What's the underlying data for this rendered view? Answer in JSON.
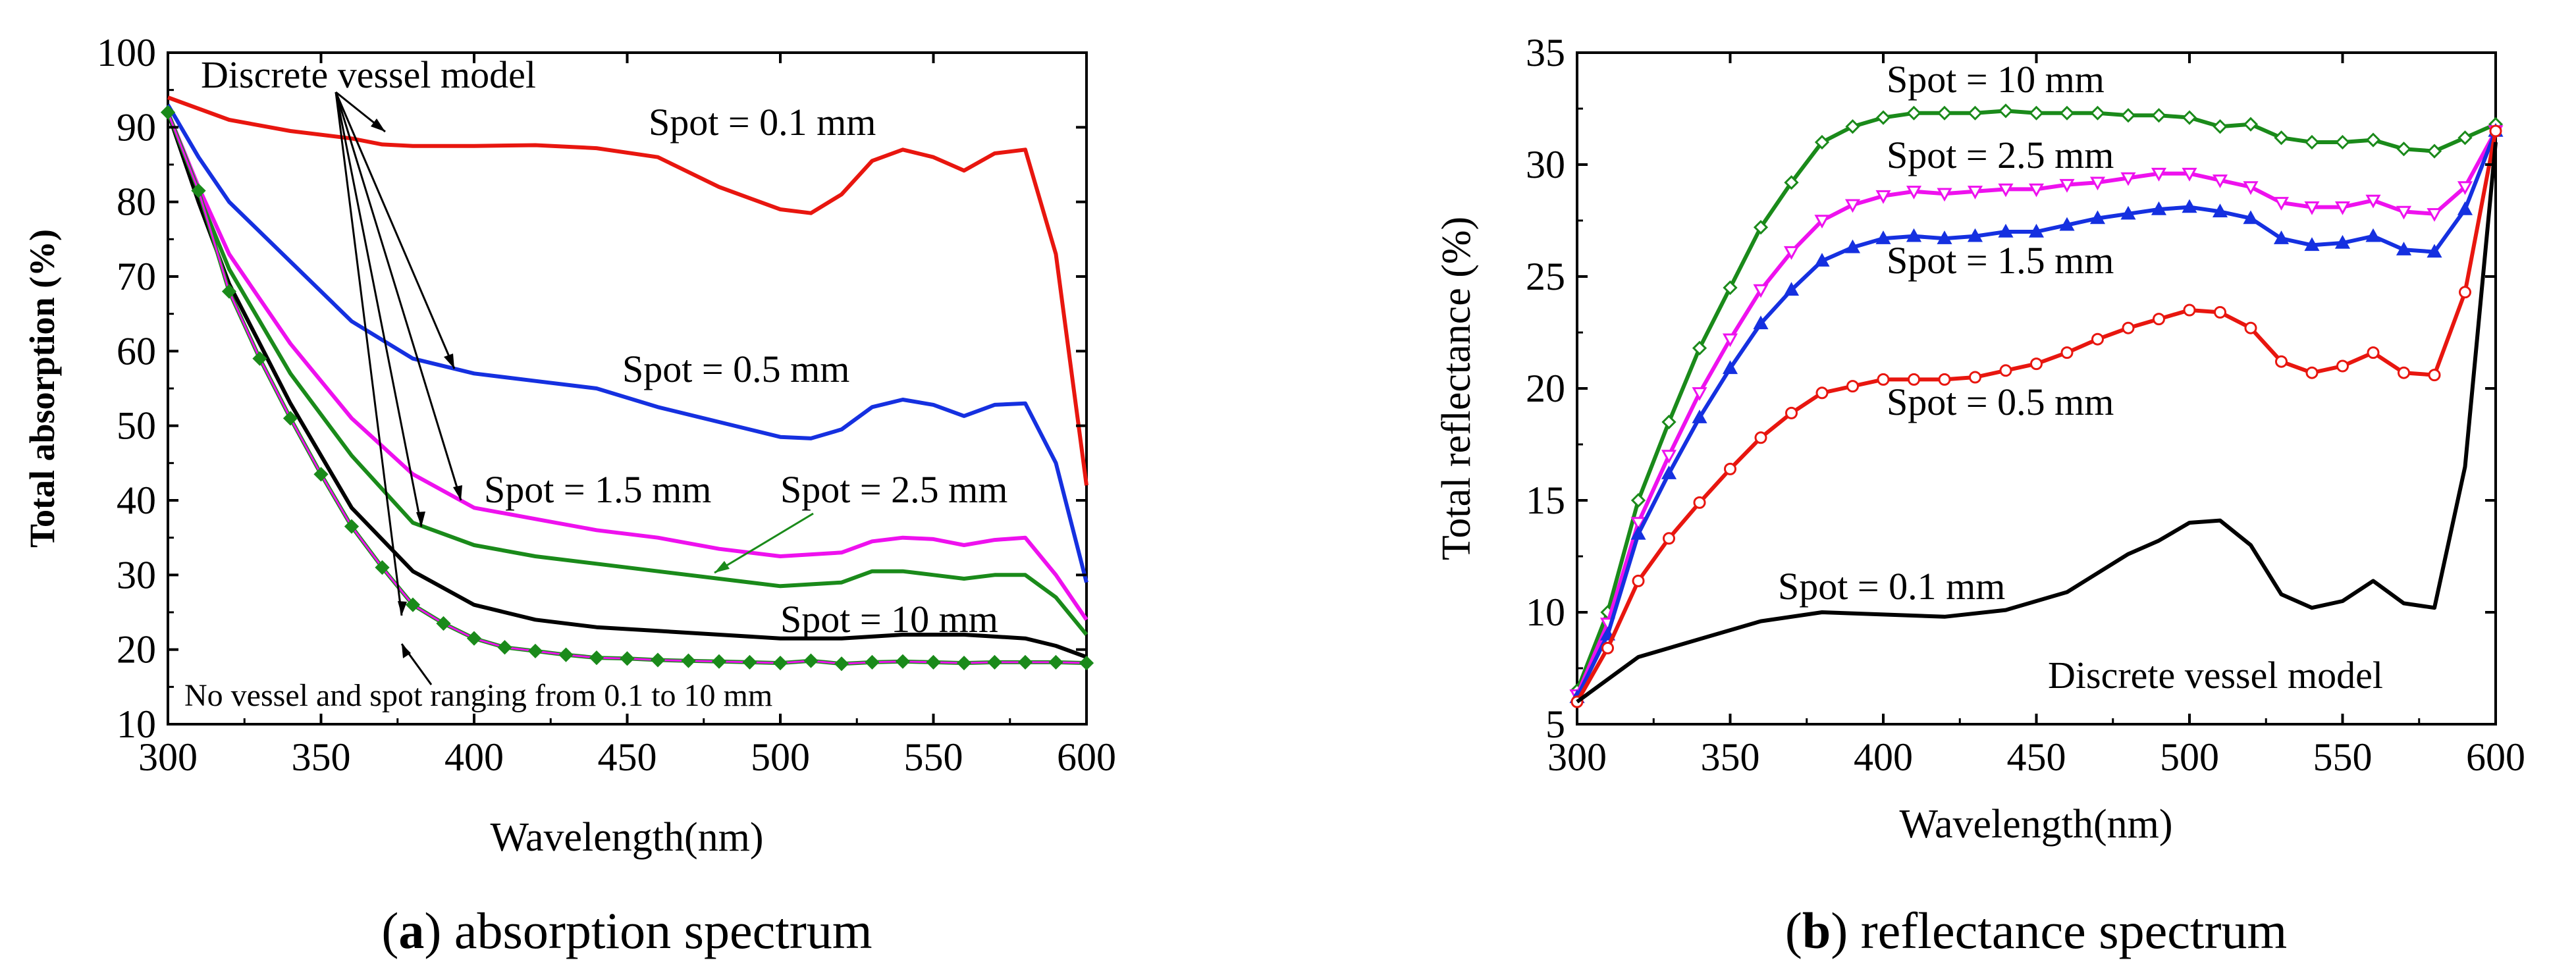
{
  "chart_data": [
    {
      "type": "line",
      "panel": "a",
      "caption_letter": "a",
      "caption_text": "absorption spectrum",
      "xlabel": "Wavelength(nm)",
      "ylabel": "Total absorption (%)",
      "xlim": [
        300,
        600
      ],
      "ylim": [
        10,
        100
      ],
      "xticks": [
        300,
        350,
        400,
        450,
        500,
        550,
        600
      ],
      "yticks": [
        10,
        20,
        30,
        40,
        50,
        60,
        70,
        80,
        90,
        100
      ],
      "series": [
        {
          "name": "Spot = 0.1 mm",
          "color": "#e8160f",
          "marker": "none",
          "x": [
            300,
            310,
            320,
            340,
            360,
            370,
            380,
            400,
            420,
            440,
            460,
            480,
            500,
            510,
            520,
            530,
            540,
            550,
            560,
            570,
            580,
            590,
            600
          ],
          "y": [
            94,
            92.5,
            91,
            89.5,
            88.5,
            87.7,
            87.5,
            87.5,
            87.6,
            87.2,
            86,
            82,
            79,
            78.5,
            81,
            85.5,
            87,
            86,
            84.2,
            86.5,
            87,
            73,
            42
          ]
        },
        {
          "name": "Spot = 0.5 mm",
          "color": "#1530e0",
          "marker": "none",
          "x": [
            300,
            310,
            320,
            340,
            360,
            380,
            400,
            420,
            440,
            460,
            480,
            500,
            510,
            520,
            530,
            540,
            550,
            560,
            570,
            580,
            590,
            600
          ],
          "y": [
            93,
            86,
            80,
            72,
            64,
            59,
            57,
            56,
            55,
            52.5,
            50.5,
            48.5,
            48.3,
            49.5,
            52.5,
            53.5,
            52.8,
            51.3,
            52.8,
            53,
            45,
            29
          ]
        },
        {
          "name": "Spot = 1.5 mm",
          "color": "#ee11ee",
          "marker": "none",
          "x": [
            300,
            310,
            320,
            340,
            360,
            380,
            400,
            420,
            440,
            460,
            480,
            500,
            520,
            530,
            540,
            550,
            560,
            570,
            580,
            590,
            600
          ],
          "y": [
            92,
            82,
            73,
            61,
            51,
            43.5,
            39,
            37.5,
            36,
            35,
            33.5,
            32.5,
            33,
            34.5,
            35,
            34.8,
            34,
            34.7,
            35,
            30,
            24
          ]
        },
        {
          "name": "Spot = 2.5 mm",
          "color": "#1a8a1a",
          "marker": "none",
          "x": [
            300,
            310,
            320,
            340,
            360,
            380,
            400,
            420,
            440,
            460,
            480,
            500,
            520,
            530,
            540,
            550,
            560,
            570,
            580,
            590,
            600
          ],
          "y": [
            92,
            81,
            71,
            57,
            46,
            37,
            34,
            32.5,
            31.5,
            30.5,
            29.5,
            28.5,
            29,
            30.5,
            30.5,
            30,
            29.5,
            30,
            30,
            27,
            22
          ]
        },
        {
          "name": "Spot = 10 mm",
          "color": "#000000",
          "marker": "none",
          "x": [
            300,
            310,
            320,
            340,
            360,
            380,
            400,
            420,
            440,
            460,
            480,
            500,
            520,
            540,
            560,
            580,
            590,
            600
          ],
          "y": [
            92,
            80,
            69,
            53,
            39,
            30.5,
            26,
            24,
            23,
            22.5,
            22,
            21.5,
            21.5,
            22,
            22,
            21.5,
            20.5,
            19
          ]
        },
        {
          "name": "No vessel and spot ranging from 0.1 to 10 mm",
          "color": "#1a8a1a",
          "marker": "diamond",
          "overlay_color": "#ee11ee",
          "x": [
            300,
            310,
            320,
            330,
            340,
            350,
            360,
            370,
            380,
            390,
            400,
            410,
            420,
            430,
            440,
            450,
            460,
            470,
            480,
            490,
            500,
            510,
            520,
            530,
            540,
            550,
            560,
            570,
            580,
            590,
            600
          ],
          "y": [
            92,
            81.5,
            68,
            59,
            51,
            43.5,
            36.5,
            31,
            26,
            23.5,
            21.5,
            20.3,
            19.8,
            19.3,
            18.9,
            18.8,
            18.6,
            18.5,
            18.4,
            18.3,
            18.2,
            18.5,
            18.1,
            18.3,
            18.4,
            18.3,
            18.2,
            18.3,
            18.3,
            18.3,
            18.2
          ]
        }
      ],
      "annotations": {
        "discrete_model": "Discrete vessel model",
        "no_vessel": "No vessel and spot ranging from 0.1 to 10 mm",
        "spot_01": "Spot = 0.1 mm",
        "spot_05": "Spot = 0.5 mm",
        "spot_15": "Spot = 1.5 mm",
        "spot_25": "Spot = 2.5 mm",
        "spot_10": "Spot = 10 mm"
      }
    },
    {
      "type": "line",
      "panel": "b",
      "caption_letter": "b",
      "caption_text": "reflectance spectrum",
      "xlabel": "Wavelength(nm)",
      "ylabel": "Total reflectance (%)",
      "xlim": [
        300,
        600
      ],
      "ylim": [
        5,
        35
      ],
      "xticks": [
        300,
        350,
        400,
        450,
        500,
        550,
        600
      ],
      "yticks": [
        5,
        10,
        15,
        20,
        25,
        30,
        35
      ],
      "series": [
        {
          "name": "Spot = 10 mm",
          "color": "#1a8a1a",
          "marker": "diamond-open",
          "x": [
            300,
            310,
            320,
            330,
            340,
            350,
            360,
            370,
            380,
            390,
            400,
            410,
            420,
            430,
            440,
            450,
            460,
            470,
            480,
            490,
            500,
            510,
            520,
            530,
            540,
            550,
            560,
            570,
            580,
            590,
            600
          ],
          "y": [
            6.5,
            10,
            15,
            18.5,
            21.8,
            24.5,
            27.2,
            29.2,
            31,
            31.7,
            32.1,
            32.3,
            32.3,
            32.3,
            32.4,
            32.3,
            32.3,
            32.3,
            32.2,
            32.2,
            32.1,
            31.7,
            31.8,
            31.2,
            31,
            31,
            31.1,
            30.7,
            30.6,
            31.2,
            31.8
          ]
        },
        {
          "name": "Spot = 2.5 mm",
          "color": "#ee11ee",
          "marker": "triangle-down-open",
          "x": [
            300,
            310,
            320,
            330,
            340,
            350,
            360,
            370,
            380,
            390,
            400,
            410,
            420,
            430,
            440,
            450,
            460,
            470,
            480,
            490,
            500,
            510,
            520,
            530,
            540,
            550,
            560,
            570,
            580,
            590,
            600
          ],
          "y": [
            6.3,
            9.5,
            14,
            17,
            19.8,
            22.2,
            24.4,
            26.1,
            27.5,
            28.2,
            28.6,
            28.8,
            28.7,
            28.8,
            28.9,
            28.9,
            29.1,
            29.2,
            29.4,
            29.6,
            29.6,
            29.3,
            29,
            28.3,
            28.1,
            28.1,
            28.4,
            27.9,
            27.8,
            29,
            31.5
          ]
        },
        {
          "name": "Spot = 1.5 mm",
          "color": "#1530e0",
          "marker": "triangle-up",
          "x": [
            300,
            310,
            320,
            330,
            340,
            350,
            360,
            370,
            380,
            390,
            400,
            410,
            420,
            430,
            440,
            450,
            460,
            470,
            480,
            490,
            500,
            510,
            520,
            530,
            540,
            550,
            560,
            570,
            580,
            590,
            600
          ],
          "y": [
            6.2,
            9,
            13.5,
            16.2,
            18.7,
            20.9,
            22.9,
            24.4,
            25.7,
            26.3,
            26.7,
            26.8,
            26.7,
            26.8,
            27,
            27,
            27.3,
            27.6,
            27.8,
            28,
            28.1,
            27.9,
            27.6,
            26.7,
            26.4,
            26.5,
            26.8,
            26.2,
            26.1,
            28,
            31.5
          ]
        },
        {
          "name": "Spot = 0.5 mm",
          "color": "#e8160f",
          "marker": "circle-open",
          "x": [
            300,
            310,
            320,
            330,
            340,
            350,
            360,
            370,
            380,
            390,
            400,
            410,
            420,
            430,
            440,
            450,
            460,
            470,
            480,
            490,
            500,
            510,
            520,
            530,
            540,
            550,
            560,
            570,
            580,
            590,
            600
          ],
          "y": [
            6,
            8.4,
            11.4,
            13.3,
            14.9,
            16.4,
            17.8,
            18.9,
            19.8,
            20.1,
            20.4,
            20.4,
            20.4,
            20.5,
            20.8,
            21.1,
            21.6,
            22.2,
            22.7,
            23.1,
            23.5,
            23.4,
            22.7,
            21.2,
            20.7,
            21,
            21.6,
            20.7,
            20.6,
            24.3,
            31.5
          ]
        },
        {
          "name": "Spot = 0.1 mm",
          "color": "#000000",
          "marker": "none",
          "x": [
            300,
            320,
            340,
            360,
            380,
            400,
            420,
            440,
            460,
            480,
            490,
            500,
            510,
            520,
            530,
            540,
            550,
            560,
            570,
            580,
            590,
            600
          ],
          "y": [
            6,
            8,
            8.8,
            9.6,
            10,
            9.9,
            9.8,
            10.1,
            10.9,
            12.6,
            13.2,
            14,
            14.1,
            13,
            10.8,
            10.2,
            10.5,
            11.4,
            10.4,
            10.2,
            16.5,
            31
          ]
        }
      ],
      "annotations": {
        "discrete_model": "Discrete vessel model",
        "spot_10": "Spot = 10 mm",
        "spot_25": "Spot = 2.5 mm",
        "spot_15": "Spot = 1.5 mm",
        "spot_05": "Spot = 0.5 mm",
        "spot_01": "Spot = 0.1 mm"
      }
    }
  ]
}
